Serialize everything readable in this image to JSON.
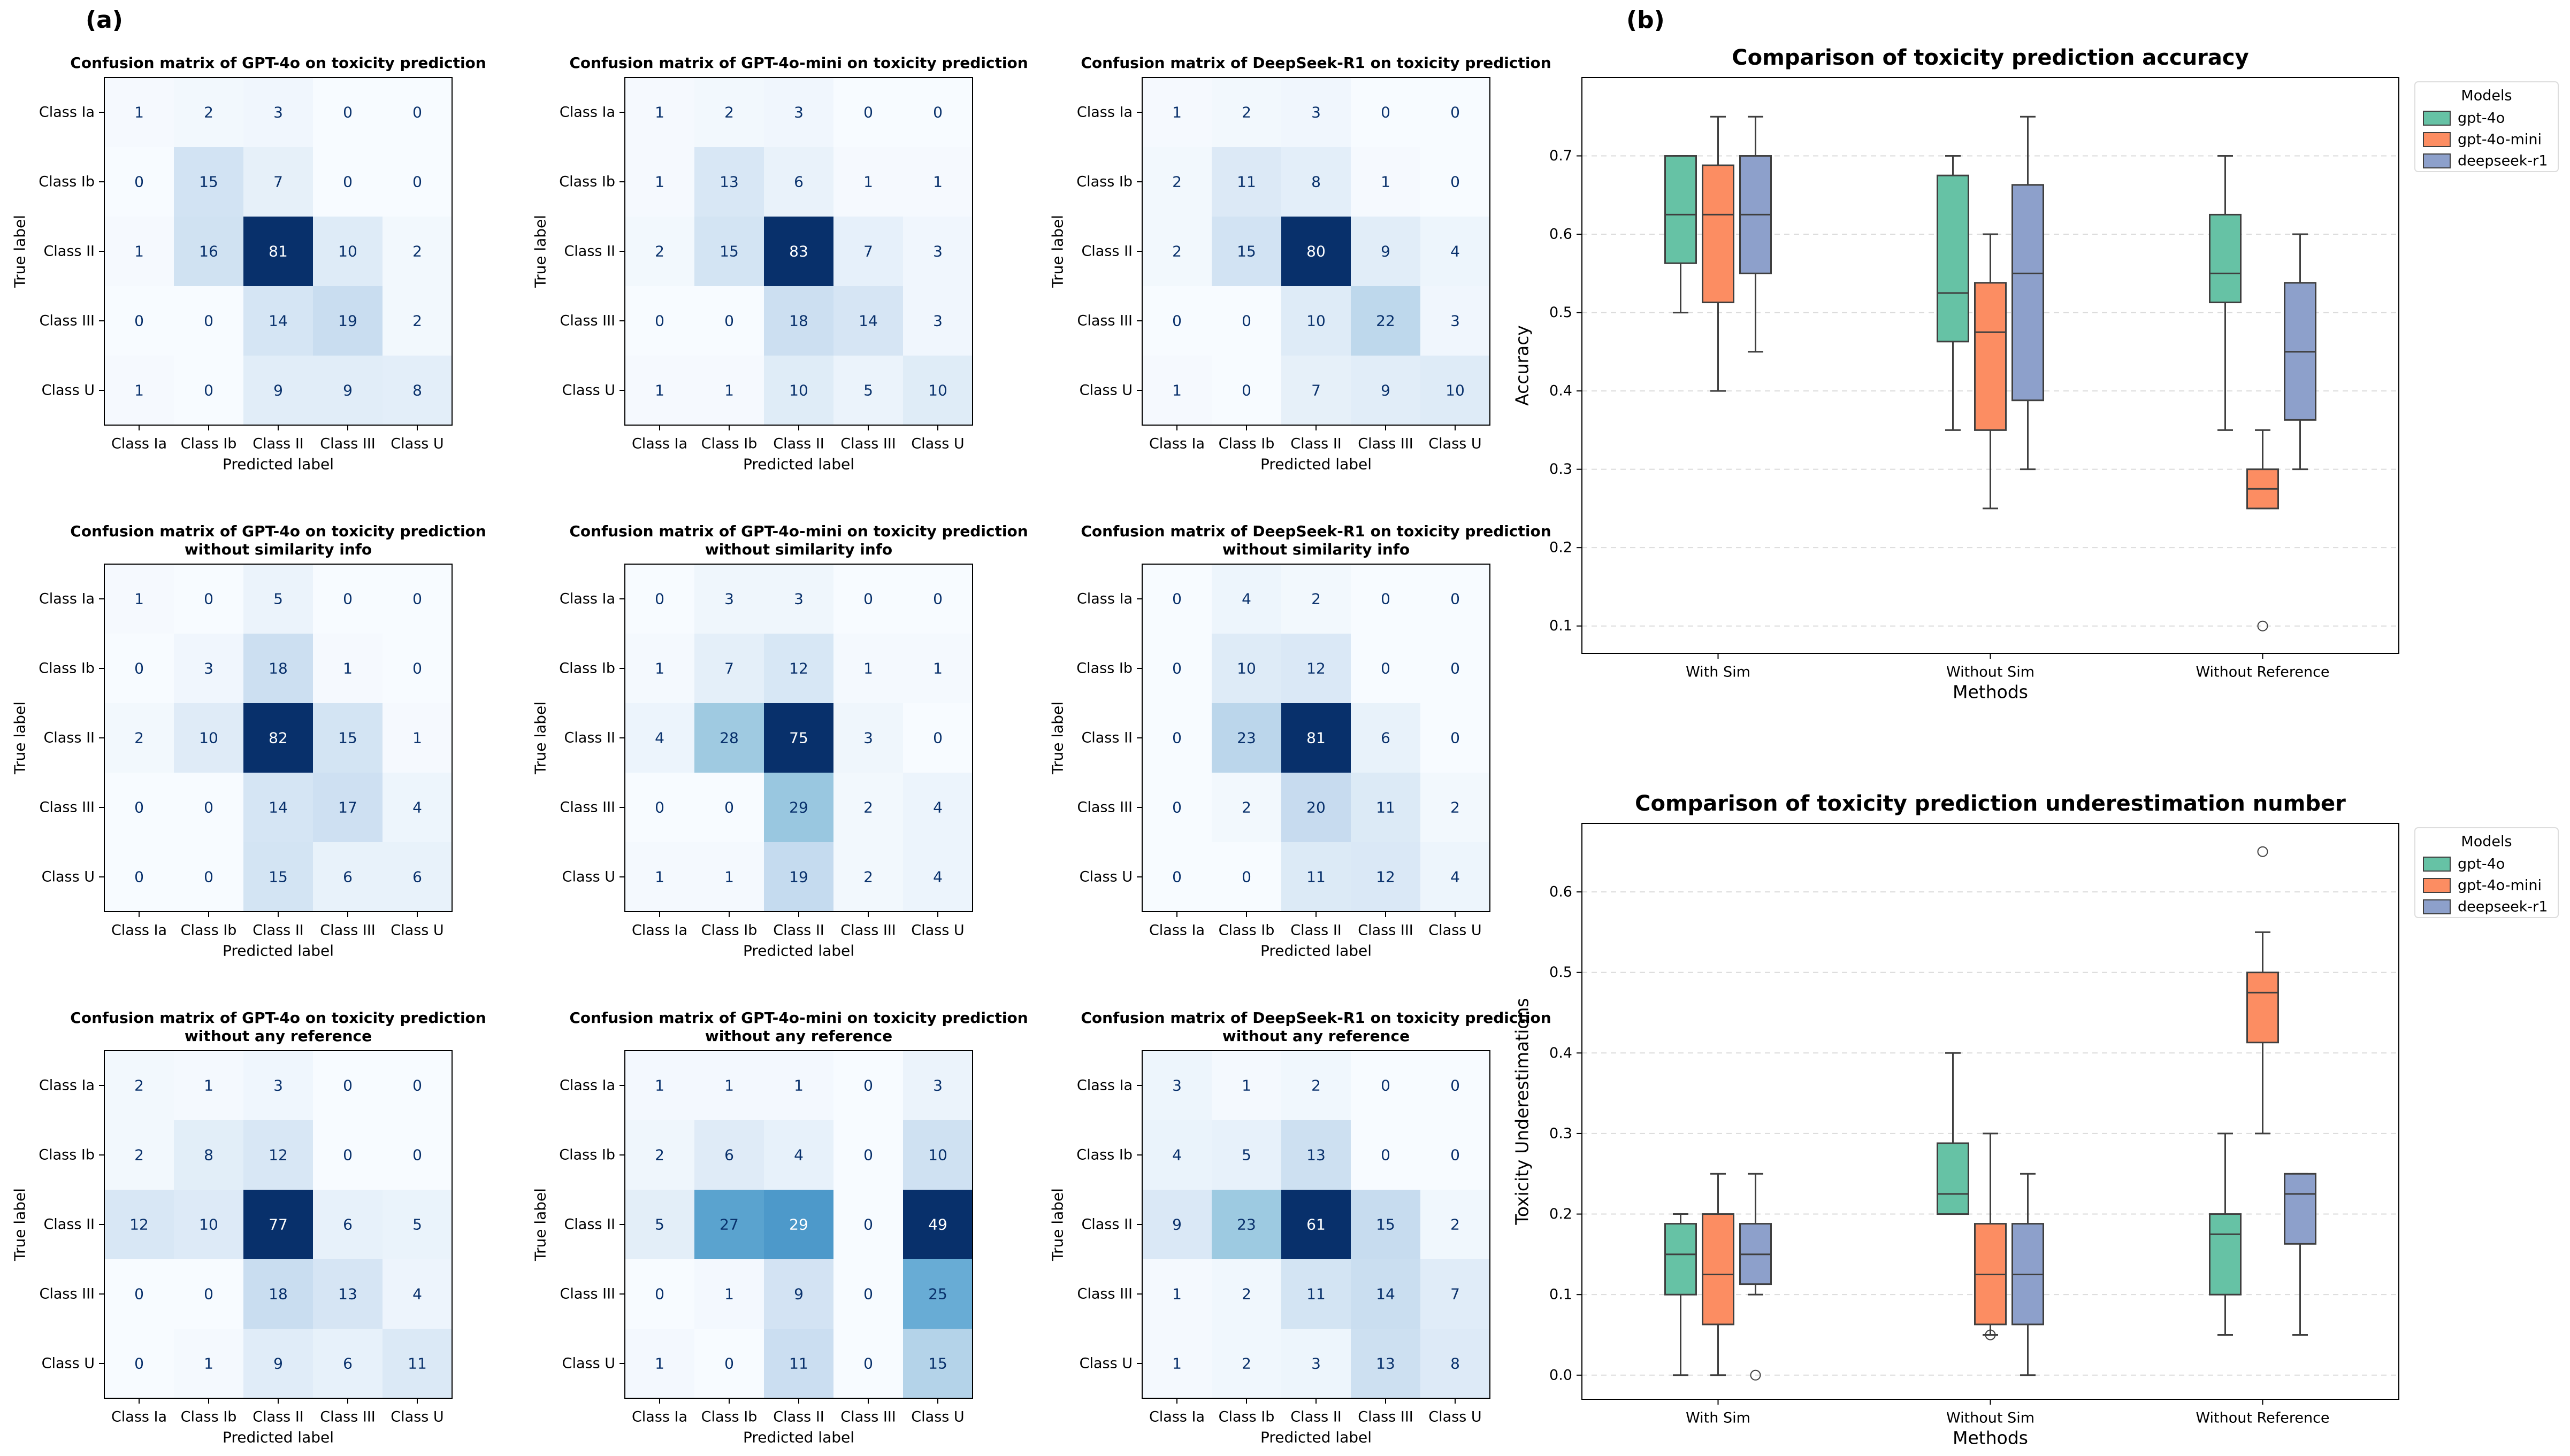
{
  "panel_labels": {
    "a": "(a)",
    "b": "(b)"
  },
  "chart_data": [
    {
      "type": "heatmap",
      "title": "Confusion matrix of GPT-4o on toxicity prediction",
      "xlabel": "Predicted label",
      "ylabel": "True label",
      "x_categories": [
        "Class Ia",
        "Class Ib",
        "Class II",
        "Class III",
        "Class U"
      ],
      "y_categories": [
        "Class Ia",
        "Class Ib",
        "Class II",
        "Class III",
        "Class U"
      ],
      "values": [
        [
          1,
          2,
          3,
          0,
          0
        ],
        [
          0,
          15,
          7,
          0,
          0
        ],
        [
          1,
          16,
          81,
          10,
          2
        ],
        [
          0,
          0,
          14,
          19,
          2
        ],
        [
          1,
          0,
          9,
          9,
          8
        ]
      ],
      "colormap": "Blues"
    },
    {
      "type": "heatmap",
      "title": "Confusion matrix of GPT-4o-mini on toxicity prediction",
      "xlabel": "Predicted label",
      "ylabel": "True label",
      "x_categories": [
        "Class Ia",
        "Class Ib",
        "Class II",
        "Class III",
        "Class U"
      ],
      "y_categories": [
        "Class Ia",
        "Class Ib",
        "Class II",
        "Class III",
        "Class U"
      ],
      "values": [
        [
          1,
          2,
          3,
          0,
          0
        ],
        [
          1,
          13,
          6,
          1,
          1
        ],
        [
          2,
          15,
          83,
          7,
          3
        ],
        [
          0,
          0,
          18,
          14,
          3
        ],
        [
          1,
          1,
          10,
          5,
          10
        ]
      ],
      "colormap": "Blues"
    },
    {
      "type": "heatmap",
      "title": "Confusion matrix of DeepSeek-R1 on toxicity prediction",
      "xlabel": "Predicted label",
      "ylabel": "True label",
      "x_categories": [
        "Class Ia",
        "Class Ib",
        "Class II",
        "Class III",
        "Class U"
      ],
      "y_categories": [
        "Class Ia",
        "Class Ib",
        "Class II",
        "Class III",
        "Class U"
      ],
      "values": [
        [
          1,
          2,
          3,
          0,
          0
        ],
        [
          2,
          11,
          8,
          1,
          0
        ],
        [
          2,
          15,
          80,
          9,
          4
        ],
        [
          0,
          0,
          10,
          22,
          3
        ],
        [
          1,
          0,
          7,
          9,
          10
        ]
      ],
      "colormap": "Blues"
    },
    {
      "type": "heatmap",
      "title": "Confusion matrix of GPT-4o on toxicity prediction\nwithout similarity info",
      "xlabel": "Predicted label",
      "ylabel": "True label",
      "x_categories": [
        "Class Ia",
        "Class Ib",
        "Class II",
        "Class III",
        "Class U"
      ],
      "y_categories": [
        "Class Ia",
        "Class Ib",
        "Class II",
        "Class III",
        "Class U"
      ],
      "values": [
        [
          1,
          0,
          5,
          0,
          0
        ],
        [
          0,
          3,
          18,
          1,
          0
        ],
        [
          2,
          10,
          82,
          15,
          1
        ],
        [
          0,
          0,
          14,
          17,
          4
        ],
        [
          0,
          0,
          15,
          6,
          6
        ]
      ],
      "colormap": "Blues"
    },
    {
      "type": "heatmap",
      "title": "Confusion matrix of GPT-4o-mini on toxicity prediction\nwithout similarity info",
      "xlabel": "Predicted label",
      "ylabel": "True label",
      "x_categories": [
        "Class Ia",
        "Class Ib",
        "Class II",
        "Class III",
        "Class U"
      ],
      "y_categories": [
        "Class Ia",
        "Class Ib",
        "Class II",
        "Class III",
        "Class U"
      ],
      "values": [
        [
          0,
          3,
          3,
          0,
          0
        ],
        [
          1,
          7,
          12,
          1,
          1
        ],
        [
          4,
          28,
          75,
          3,
          0
        ],
        [
          0,
          0,
          29,
          2,
          4
        ],
        [
          1,
          1,
          19,
          2,
          4
        ]
      ],
      "colormap": "Blues"
    },
    {
      "type": "heatmap",
      "title": "Confusion matrix of DeepSeek-R1 on toxicity prediction\nwithout similarity info",
      "xlabel": "Predicted label",
      "ylabel": "True label",
      "x_categories": [
        "Class Ia",
        "Class Ib",
        "Class II",
        "Class III",
        "Class U"
      ],
      "y_categories": [
        "Class Ia",
        "Class Ib",
        "Class II",
        "Class III",
        "Class U"
      ],
      "values": [
        [
          0,
          4,
          2,
          0,
          0
        ],
        [
          0,
          10,
          12,
          0,
          0
        ],
        [
          0,
          23,
          81,
          6,
          0
        ],
        [
          0,
          2,
          20,
          11,
          2
        ],
        [
          0,
          0,
          11,
          12,
          4
        ]
      ],
      "colormap": "Blues"
    },
    {
      "type": "heatmap",
      "title": "Confusion matrix of GPT-4o on toxicity prediction\nwithout any reference",
      "xlabel": "Predicted label",
      "ylabel": "True label",
      "x_categories": [
        "Class Ia",
        "Class Ib",
        "Class II",
        "Class III",
        "Class U"
      ],
      "y_categories": [
        "Class Ia",
        "Class Ib",
        "Class II",
        "Class III",
        "Class U"
      ],
      "values": [
        [
          2,
          1,
          3,
          0,
          0
        ],
        [
          2,
          8,
          12,
          0,
          0
        ],
        [
          12,
          10,
          77,
          6,
          5
        ],
        [
          0,
          0,
          18,
          13,
          4
        ],
        [
          0,
          1,
          9,
          6,
          11
        ]
      ],
      "colormap": "Blues"
    },
    {
      "type": "heatmap",
      "title": "Confusion matrix of GPT-4o-mini on toxicity prediction\nwithout any reference",
      "xlabel": "Predicted label",
      "ylabel": "True label",
      "x_categories": [
        "Class Ia",
        "Class Ib",
        "Class II",
        "Class III",
        "Class U"
      ],
      "y_categories": [
        "Class Ia",
        "Class Ib",
        "Class II",
        "Class III",
        "Class U"
      ],
      "values": [
        [
          1,
          1,
          1,
          0,
          3
        ],
        [
          2,
          6,
          4,
          0,
          10
        ],
        [
          5,
          27,
          29,
          0,
          49
        ],
        [
          0,
          1,
          9,
          0,
          25
        ],
        [
          1,
          0,
          11,
          0,
          15
        ]
      ],
      "colormap": "Blues"
    },
    {
      "type": "heatmap",
      "title": "Confusion matrix of DeepSeek-R1 on toxicity prediction\nwithout any reference",
      "xlabel": "Predicted label",
      "ylabel": "True label",
      "x_categories": [
        "Class Ia",
        "Class Ib",
        "Class II",
        "Class III",
        "Class U"
      ],
      "y_categories": [
        "Class Ia",
        "Class Ib",
        "Class II",
        "Class III",
        "Class U"
      ],
      "values": [
        [
          3,
          1,
          2,
          0,
          0
        ],
        [
          4,
          5,
          13,
          0,
          0
        ],
        [
          9,
          23,
          61,
          15,
          2
        ],
        [
          1,
          2,
          11,
          14,
          7
        ],
        [
          1,
          2,
          3,
          13,
          8
        ]
      ],
      "colormap": "Blues"
    },
    {
      "type": "box",
      "title": "Comparison of toxicity prediction accuracy",
      "xlabel": "Methods",
      "ylabel": "Accuracy",
      "categories": [
        "With Sim",
        "Without Sim",
        "Without Reference"
      ],
      "ylim": [
        0.065,
        0.8
      ],
      "yticks": [
        0.1,
        0.2,
        0.3,
        0.4,
        0.5,
        0.6,
        0.7
      ],
      "grid": "y-dashed",
      "legend": {
        "title": "Models",
        "position": "outside-top-right"
      },
      "series": [
        {
          "name": "gpt-4o",
          "color": "#66c2a5",
          "boxes": [
            {
              "whislo": 0.5,
              "q1": 0.563,
              "med": 0.625,
              "q3": 0.7,
              "whishi": 0.7,
              "fliers": []
            },
            {
              "whislo": 0.35,
              "q1": 0.463,
              "med": 0.525,
              "q3": 0.675,
              "whishi": 0.7,
              "fliers": []
            },
            {
              "whislo": 0.35,
              "q1": 0.513,
              "med": 0.55,
              "q3": 0.625,
              "whishi": 0.7,
              "fliers": []
            }
          ]
        },
        {
          "name": "gpt-4o-mini",
          "color": "#fc8d62",
          "boxes": [
            {
              "whislo": 0.4,
              "q1": 0.513,
              "med": 0.625,
              "q3": 0.688,
              "whishi": 0.75,
              "fliers": []
            },
            {
              "whislo": 0.25,
              "q1": 0.35,
              "med": 0.475,
              "q3": 0.538,
              "whishi": 0.6,
              "fliers": []
            },
            {
              "whislo": 0.25,
              "q1": 0.25,
              "med": 0.275,
              "q3": 0.3,
              "whishi": 0.35,
              "fliers": [
                0.1
              ]
            }
          ]
        },
        {
          "name": "deepseek-r1",
          "color": "#8da0cb",
          "boxes": [
            {
              "whislo": 0.45,
              "q1": 0.55,
              "med": 0.625,
              "q3": 0.7,
              "whishi": 0.75,
              "fliers": []
            },
            {
              "whislo": 0.3,
              "q1": 0.388,
              "med": 0.55,
              "q3": 0.663,
              "whishi": 0.75,
              "fliers": []
            },
            {
              "whislo": 0.3,
              "q1": 0.363,
              "med": 0.45,
              "q3": 0.538,
              "whishi": 0.6,
              "fliers": []
            }
          ]
        }
      ]
    },
    {
      "type": "box",
      "title": "Comparison of toxicity prediction underestimation number",
      "xlabel": "Methods",
      "ylabel": "Toxicity Underestimations",
      "categories": [
        "With Sim",
        "Without Sim",
        "Without Reference"
      ],
      "ylim": [
        -0.03,
        0.685
      ],
      "yticks": [
        0.0,
        0.1,
        0.2,
        0.3,
        0.4,
        0.5,
        0.6
      ],
      "grid": "y-dashed",
      "legend": {
        "title": "Models",
        "position": "outside-top-right"
      },
      "series": [
        {
          "name": "gpt-4o",
          "color": "#66c2a5",
          "boxes": [
            {
              "whislo": 0.0,
              "q1": 0.1,
              "med": 0.15,
              "q3": 0.188,
              "whishi": 0.2,
              "fliers": []
            },
            {
              "whislo": 0.2,
              "q1": 0.2,
              "med": 0.225,
              "q3": 0.288,
              "whishi": 0.4,
              "fliers": []
            },
            {
              "whislo": 0.05,
              "q1": 0.1,
              "med": 0.175,
              "q3": 0.2,
              "whishi": 0.3,
              "fliers": []
            }
          ]
        },
        {
          "name": "gpt-4o-mini",
          "color": "#fc8d62",
          "boxes": [
            {
              "whislo": 0.0,
              "q1": 0.063,
              "med": 0.125,
              "q3": 0.2,
              "whishi": 0.25,
              "fliers": []
            },
            {
              "whislo": 0.05,
              "q1": 0.063,
              "med": 0.125,
              "q3": 0.188,
              "whishi": 0.3,
              "fliers": [
                0.05
              ]
            },
            {
              "whislo": 0.3,
              "q1": 0.413,
              "med": 0.475,
              "q3": 0.5,
              "whishi": 0.55,
              "fliers": [
                0.65
              ]
            }
          ]
        },
        {
          "name": "deepseek-r1",
          "color": "#8da0cb",
          "boxes": [
            {
              "whislo": 0.1,
              "q1": 0.113,
              "med": 0.15,
              "q3": 0.188,
              "whishi": 0.25,
              "fliers": [
                0.0
              ]
            },
            {
              "whislo": 0.0,
              "q1": 0.063,
              "med": 0.125,
              "q3": 0.188,
              "whishi": 0.25,
              "fliers": []
            },
            {
              "whislo": 0.05,
              "q1": 0.163,
              "med": 0.225,
              "q3": 0.25,
              "whishi": 0.25,
              "fliers": []
            }
          ]
        }
      ]
    }
  ]
}
